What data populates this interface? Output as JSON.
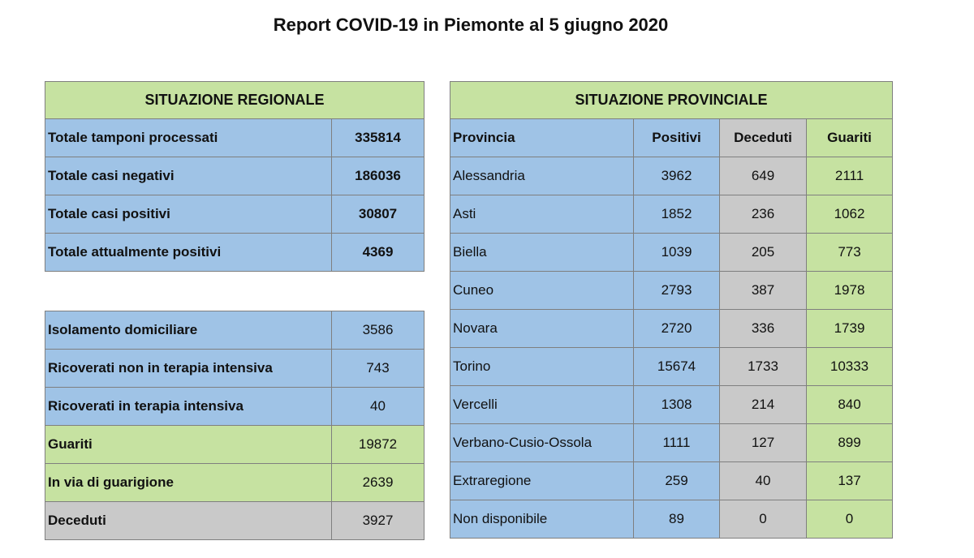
{
  "title": "Report COVID-19 in Piemonte al 5 giugno 2020",
  "regional": {
    "header": "SITUAZIONE REGIONALE",
    "top_rows": [
      {
        "label": "Totale tamponi processati",
        "value": "335814"
      },
      {
        "label": "Totale casi negativi",
        "value": "186036"
      },
      {
        "label": "Totale casi positivi",
        "value": "30807"
      },
      {
        "label": "Totale attualmente positivi",
        "value": "4369"
      }
    ],
    "bottom_rows": [
      {
        "label": "Isolamento domiciliare",
        "value": "3586",
        "color": "#9fc3e6"
      },
      {
        "label": "Ricoverati non in terapia intensiva",
        "value": "743",
        "color": "#9fc3e6"
      },
      {
        "label": "Ricoverati in terapia intensiva",
        "value": "40",
        "color": "#9fc3e6"
      },
      {
        "label": "Guariti",
        "value": "19872",
        "color": "#c6e2a1"
      },
      {
        "label": "In via di guarigione",
        "value": "2639",
        "color": "#c6e2a1"
      },
      {
        "label": "Deceduti",
        "value": "3927",
        "color": "#c9c9c9"
      }
    ]
  },
  "provincial": {
    "header": "SITUAZIONE PROVINCIALE",
    "columns": [
      "Provincia",
      "Positivi",
      "Deceduti",
      "Guariti"
    ],
    "rows": [
      {
        "provincia": "Alessandria",
        "positivi": "3962",
        "deceduti": "649",
        "guariti": "2111"
      },
      {
        "provincia": "Asti",
        "positivi": "1852",
        "deceduti": "236",
        "guariti": "1062"
      },
      {
        "provincia": "Biella",
        "positivi": "1039",
        "deceduti": "205",
        "guariti": "773"
      },
      {
        "provincia": "Cuneo",
        "positivi": "2793",
        "deceduti": "387",
        "guariti": "1978"
      },
      {
        "provincia": "Novara",
        "positivi": "2720",
        "deceduti": "336",
        "guariti": "1739"
      },
      {
        "provincia": "Torino",
        "positivi": "15674",
        "deceduti": "1733",
        "guariti": "10333"
      },
      {
        "provincia": "Vercelli",
        "positivi": "1308",
        "deceduti": "214",
        "guariti": "840"
      },
      {
        "provincia": "Verbano-Cusio-Ossola",
        "positivi": "1111",
        "deceduti": "127",
        "guariti": "899"
      },
      {
        "provincia": "Extraregione",
        "positivi": "259",
        "deceduti": "40",
        "guariti": "137"
      },
      {
        "provincia": "Non disponibile",
        "positivi": "89",
        "deceduti": "0",
        "guariti": "0"
      }
    ]
  },
  "colors": {
    "green": "#c6e2a1",
    "blue": "#9fc3e6",
    "gray": "#c9c9c9"
  }
}
